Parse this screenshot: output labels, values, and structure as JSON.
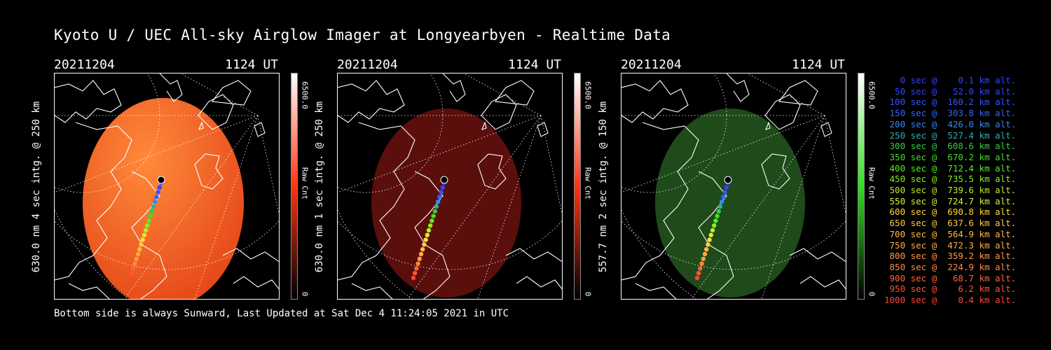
{
  "title": "Kyoto U / UEC All-sky Airglow Imager at Longyearbyen - Realtime Data",
  "footer": "Bottom side is always Sunward, Last Updated at Sat Dec  4 11:24:05 2021 in UTC",
  "panels": [
    {
      "date": "20211204",
      "time": "1124 UT",
      "ylabel": "630.0 nm 4 sec intg. @ 250 km",
      "cb_max": "6500.0",
      "cb_unit": "Raw Cnt",
      "cb_min": "0",
      "color": "#ff3311",
      "glow": "#e64a1a",
      "intensity": "bright"
    },
    {
      "date": "20211204",
      "time": "1124 UT",
      "ylabel": "630.0 nm 1 sec intg. @ 250 km",
      "cb_max": "6500.0",
      "cb_unit": "Raw Cnt",
      "cb_min": "0",
      "color": "#ff3311",
      "glow": "#5a0f0c",
      "intensity": "dim"
    },
    {
      "date": "20211204",
      "time": "1124 UT",
      "ylabel": "557.7 nm 2 sec intg. @ 150 km",
      "cb_max": "6500.0",
      "cb_unit": "Raw Cnt",
      "cb_min": "0",
      "color": "#33dd22",
      "glow": "#1f4a1a",
      "intensity": "dim"
    }
  ],
  "legend": [
    {
      "text": "   0 sec @    0.1 km alt.",
      "color": "#3344ff"
    },
    {
      "text": "  50 sec @   52.0 km alt.",
      "color": "#3344ff"
    },
    {
      "text": " 100 sec @  160.2 km alt.",
      "color": "#3355ff"
    },
    {
      "text": " 150 sec @  303.8 km alt.",
      "color": "#3366ff"
    },
    {
      "text": " 200 sec @  426.0 km alt.",
      "color": "#3388ee"
    },
    {
      "text": " 250 sec @  527.4 km alt.",
      "color": "#33aaaa"
    },
    {
      "text": " 300 sec @  608.6 km alt.",
      "color": "#33cc44"
    },
    {
      "text": " 350 sec @  670.2 km alt.",
      "color": "#44dd22"
    },
    {
      "text": " 400 sec @  712.4 km alt.",
      "color": "#55ee22"
    },
    {
      "text": " 450 sec @  735.5 km alt.",
      "color": "#88ee22"
    },
    {
      "text": " 500 sec @  739.6 km alt.",
      "color": "#bbee22"
    },
    {
      "text": " 550 sec @  724.7 km alt.",
      "color": "#ddee33"
    },
    {
      "text": " 600 sec @  690.8 km alt.",
      "color": "#ffdd33"
    },
    {
      "text": " 650 sec @  637.6 km alt.",
      "color": "#ffcc44"
    },
    {
      "text": " 700 sec @  564.9 km alt.",
      "color": "#ffbb44"
    },
    {
      "text": " 750 sec @  472.3 km alt.",
      "color": "#ffaa44"
    },
    {
      "text": " 800 sec @  359.2 km alt.",
      "color": "#ff9944"
    },
    {
      "text": " 850 sec @  224.9 km alt.",
      "color": "#ff8844"
    },
    {
      "text": " 900 sec @   68.7 km alt.",
      "color": "#ff6633"
    },
    {
      "text": " 950 sec @    6.2 km alt.",
      "color": "#ff5533"
    },
    {
      "text": "1000 sec @    0.4 km alt.",
      "color": "#ff4433"
    }
  ]
}
